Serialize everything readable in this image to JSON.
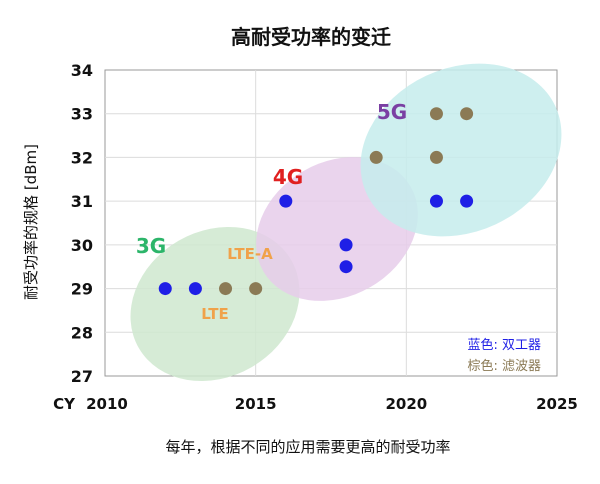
{
  "chart_data": {
    "type": "scatter",
    "title": "高耐受功率的变迁",
    "ylabel": "耐受功率的规格 [dBm]",
    "xlabel": "每年，根据不同的应用需要更高的耐受功率",
    "x_axis_prefix": "CY",
    "xlim": [
      2010,
      2025
    ],
    "ylim": [
      27,
      34
    ],
    "xticks": [
      2010,
      2015,
      2020,
      2025
    ],
    "yticks": [
      27,
      28,
      29,
      30,
      31,
      32,
      33,
      34
    ],
    "grid": true,
    "legend_placement": "bottom-right",
    "series": [
      {
        "name": "蓝色: 双工器",
        "color": "#1f1fe6",
        "points": [
          {
            "x": 2012,
            "y": 29
          },
          {
            "x": 2013,
            "y": 29
          },
          {
            "x": 2016,
            "y": 31
          },
          {
            "x": 2018,
            "y": 30
          },
          {
            "x": 2018,
            "y": 29.5
          },
          {
            "x": 2021,
            "y": 31
          },
          {
            "x": 2022,
            "y": 31
          }
        ]
      },
      {
        "name": "棕色: 滤波器",
        "color": "#8b7a55",
        "points": [
          {
            "x": 2014,
            "y": 29
          },
          {
            "x": 2015,
            "y": 29
          },
          {
            "x": 2019,
            "y": 32
          },
          {
            "x": 2021,
            "y": 32
          },
          {
            "x": 2021,
            "y": 33
          },
          {
            "x": 2022,
            "y": 33
          }
        ]
      }
    ],
    "regions": [
      {
        "label": "3G",
        "color": "#2cb56a",
        "fill": "#cfe8cf"
      },
      {
        "label": "4G",
        "color": "#e02020",
        "fill": "#e6cdea"
      },
      {
        "label": "5G",
        "color": "#7a3fa3",
        "fill": "#c6ecec"
      }
    ],
    "annotations": [
      {
        "text": "LTE-A",
        "color": "#f0a24a"
      },
      {
        "text": "LTE",
        "color": "#f0a24a"
      }
    ]
  }
}
